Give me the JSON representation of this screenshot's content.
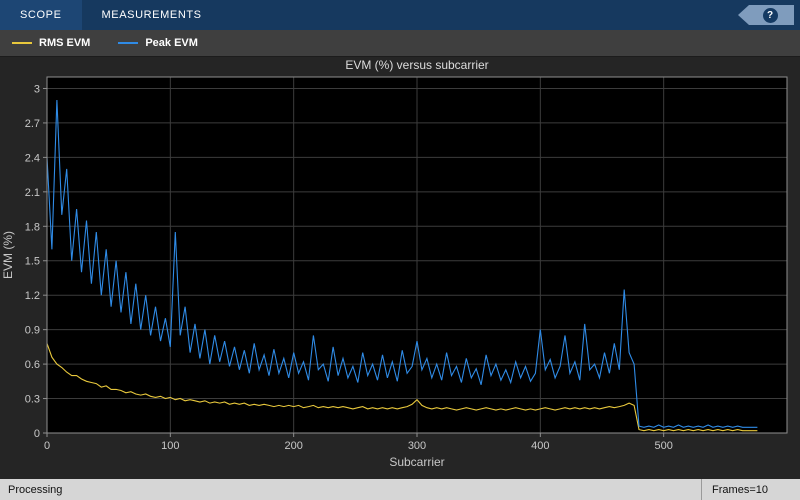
{
  "toolbar": {
    "tabs": [
      {
        "label": "SCOPE"
      },
      {
        "label": "MEASUREMENTS"
      }
    ],
    "help_label": "?"
  },
  "legend": {
    "items": [
      {
        "label": "RMS EVM",
        "color": "#e8c83c"
      },
      {
        "label": "Peak EVM",
        "color": "#2f8be6"
      }
    ]
  },
  "statusbar": {
    "left": "Processing",
    "right": "Frames=10"
  },
  "colors": {
    "toolbar_bg": "#16395f",
    "figure_bg": "#252525",
    "axes_bg": "#000000",
    "grid": "#3c3c3c",
    "axis_line": "#8f8f8f",
    "tick_text": "#c8c8c8",
    "title_text": "#dcdcdc",
    "status_bg": "#d6d6d6"
  },
  "chart_data": {
    "type": "line",
    "title": "EVM (%) versus subcarrier",
    "xlabel": "Subcarrier",
    "ylabel": "EVM (%)",
    "xlim": [
      0,
      600
    ],
    "ylim": [
      0,
      3.1
    ],
    "grid": true,
    "legend_position": "top-left-outside",
    "x_ticks": [
      0,
      100,
      200,
      300,
      400,
      500
    ],
    "y_ticks": [
      0,
      0.3,
      0.6,
      0.9,
      1.2,
      1.5,
      1.8,
      2.1,
      2.4,
      2.7,
      3
    ],
    "x_start": 0,
    "x_step": 4,
    "series": [
      {
        "name": "RMS EVM",
        "color": "#e8c83c",
        "values": [
          0.78,
          0.66,
          0.6,
          0.57,
          0.53,
          0.5,
          0.5,
          0.47,
          0.45,
          0.44,
          0.43,
          0.4,
          0.41,
          0.38,
          0.38,
          0.37,
          0.35,
          0.36,
          0.34,
          0.33,
          0.34,
          0.32,
          0.31,
          0.32,
          0.3,
          0.31,
          0.29,
          0.3,
          0.28,
          0.29,
          0.28,
          0.27,
          0.28,
          0.26,
          0.27,
          0.26,
          0.27,
          0.25,
          0.26,
          0.25,
          0.26,
          0.24,
          0.25,
          0.24,
          0.25,
          0.24,
          0.23,
          0.24,
          0.23,
          0.24,
          0.23,
          0.24,
          0.22,
          0.23,
          0.24,
          0.22,
          0.23,
          0.22,
          0.23,
          0.22,
          0.23,
          0.22,
          0.21,
          0.22,
          0.23,
          0.21,
          0.22,
          0.21,
          0.22,
          0.21,
          0.22,
          0.21,
          0.22,
          0.23,
          0.25,
          0.29,
          0.24,
          0.22,
          0.21,
          0.22,
          0.21,
          0.22,
          0.21,
          0.2,
          0.21,
          0.22,
          0.21,
          0.2,
          0.21,
          0.22,
          0.21,
          0.2,
          0.21,
          0.2,
          0.21,
          0.22,
          0.21,
          0.2,
          0.21,
          0.2,
          0.21,
          0.22,
          0.21,
          0.2,
          0.21,
          0.22,
          0.21,
          0.22,
          0.21,
          0.22,
          0.21,
          0.22,
          0.21,
          0.22,
          0.23,
          0.22,
          0.23,
          0.24,
          0.26,
          0.24,
          0.03,
          0.02,
          0.03,
          0.02,
          0.03,
          0.02,
          0.03,
          0.02,
          0.03,
          0.02,
          0.03,
          0.02,
          0.03,
          0.02,
          0.03,
          0.02,
          0.03,
          0.02,
          0.03,
          0.02,
          0.03,
          0.02,
          0.02,
          0.02,
          0.02
        ]
      },
      {
        "name": "Peak EVM",
        "color": "#2f8be6",
        "values": [
          2.4,
          1.6,
          2.9,
          1.9,
          2.3,
          1.5,
          1.95,
          1.4,
          1.85,
          1.3,
          1.75,
          1.2,
          1.6,
          1.1,
          1.5,
          1.05,
          1.4,
          0.95,
          1.3,
          0.9,
          1.2,
          0.85,
          1.1,
          0.8,
          1.0,
          0.75,
          1.75,
          0.85,
          1.1,
          0.7,
          0.95,
          0.65,
          0.9,
          0.6,
          0.85,
          0.62,
          0.8,
          0.58,
          0.75,
          0.55,
          0.72,
          0.52,
          0.78,
          0.55,
          0.68,
          0.5,
          0.73,
          0.52,
          0.65,
          0.48,
          0.7,
          0.52,
          0.62,
          0.46,
          0.85,
          0.55,
          0.6,
          0.45,
          0.75,
          0.5,
          0.65,
          0.48,
          0.58,
          0.44,
          0.7,
          0.5,
          0.6,
          0.46,
          0.68,
          0.48,
          0.62,
          0.45,
          0.72,
          0.52,
          0.58,
          0.8,
          0.55,
          0.65,
          0.48,
          0.6,
          0.46,
          0.7,
          0.5,
          0.58,
          0.44,
          0.65,
          0.48,
          0.56,
          0.42,
          0.68,
          0.5,
          0.6,
          0.46,
          0.55,
          0.44,
          0.62,
          0.48,
          0.58,
          0.45,
          0.52,
          0.9,
          0.55,
          0.64,
          0.48,
          0.58,
          0.85,
          0.52,
          0.62,
          0.46,
          0.95,
          0.55,
          0.6,
          0.48,
          0.7,
          0.52,
          0.78,
          0.55,
          1.25,
          0.7,
          0.6,
          0.06,
          0.05,
          0.06,
          0.05,
          0.07,
          0.05,
          0.06,
          0.05,
          0.07,
          0.05,
          0.06,
          0.05,
          0.06,
          0.05,
          0.07,
          0.05,
          0.06,
          0.05,
          0.06,
          0.05,
          0.06,
          0.05,
          0.05,
          0.05,
          0.05
        ]
      }
    ]
  }
}
